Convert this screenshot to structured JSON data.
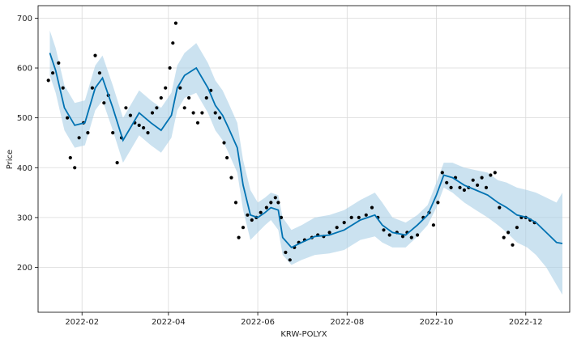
{
  "chart_data": {
    "type": "line",
    "xlabel": "KRW-POLYX",
    "ylabel": "Price",
    "x_tick_labels": [
      "2022-02",
      "2022-04",
      "2022-06",
      "2022-08",
      "2022-10",
      "2022-12"
    ],
    "x_tick_values": [
      "2022-02-01",
      "2022-04-01",
      "2022-06-01",
      "2022-08-01",
      "2022-10-01",
      "2022-12-01"
    ],
    "y_tick_values": [
      200,
      300,
      400,
      500,
      600,
      700
    ],
    "xlim": [
      "2022-01-02",
      "2022-12-31"
    ],
    "ylim": [
      110,
      725
    ],
    "grid": true,
    "colors": {
      "forecast": "#0072B2",
      "band": "#a8cfe6",
      "observed": "#000000"
    },
    "series": [
      {
        "role": "forecast",
        "x": [
          "2022-01-10",
          "2022-01-14",
          "2022-01-20",
          "2022-01-27",
          "2022-02-03",
          "2022-02-10",
          "2022-02-15",
          "2022-02-22",
          "2022-03-01",
          "2022-03-06",
          "2022-03-12",
          "2022-03-20",
          "2022-03-27",
          "2022-04-03",
          "2022-04-07",
          "2022-04-12",
          "2022-04-20",
          "2022-04-28",
          "2022-05-03",
          "2022-05-08",
          "2022-05-12",
          "2022-05-18",
          "2022-05-22",
          "2022-05-27",
          "2022-06-01",
          "2022-06-06",
          "2022-06-10",
          "2022-06-15",
          "2022-06-18",
          "2022-06-24",
          "2022-07-01",
          "2022-07-10",
          "2022-07-20",
          "2022-07-30",
          "2022-08-10",
          "2022-08-20",
          "2022-08-25",
          "2022-09-01",
          "2022-09-10",
          "2022-09-18",
          "2022-09-25",
          "2022-10-01",
          "2022-10-06",
          "2022-10-12",
          "2022-10-20",
          "2022-10-28",
          "2022-11-05",
          "2022-11-12",
          "2022-11-18",
          "2022-11-25",
          "2022-12-02",
          "2022-12-08",
          "2022-12-15",
          "2022-12-22",
          "2022-12-26"
        ],
        "values": [
          630,
          595,
          520,
          485,
          490,
          560,
          580,
          520,
          455,
          480,
          510,
          490,
          475,
          505,
          560,
          585,
          600,
          560,
          525,
          505,
          480,
          440,
          365,
          305,
          300,
          310,
          320,
          315,
          260,
          240,
          250,
          262,
          265,
          275,
          295,
          305,
          285,
          270,
          265,
          285,
          305,
          345,
          385,
          380,
          365,
          355,
          345,
          330,
          320,
          305,
          300,
          290,
          270,
          250,
          248
        ],
        "lower": [
          585,
          550,
          475,
          440,
          445,
          515,
          535,
          475,
          410,
          435,
          465,
          445,
          430,
          460,
          515,
          540,
          550,
          510,
          475,
          455,
          430,
          390,
          315,
          255,
          270,
          285,
          295,
          275,
          225,
          205,
          215,
          225,
          228,
          235,
          255,
          262,
          250,
          240,
          240,
          262,
          285,
          320,
          360,
          350,
          330,
          315,
          300,
          285,
          270,
          250,
          240,
          225,
          200,
          165,
          145
        ],
        "upper": [
          675,
          640,
          565,
          530,
          535,
          605,
          625,
          565,
          500,
          525,
          555,
          535,
          520,
          550,
          605,
          630,
          650,
          610,
          575,
          555,
          530,
          490,
          415,
          355,
          330,
          340,
          350,
          345,
          300,
          275,
          285,
          300,
          305,
          315,
          335,
          350,
          330,
          300,
          290,
          305,
          325,
          370,
          410,
          410,
          400,
          395,
          390,
          375,
          370,
          360,
          355,
          350,
          340,
          330,
          350
        ]
      },
      {
        "role": "observed",
        "x": [
          "2022-01-09",
          "2022-01-12",
          "2022-01-16",
          "2022-01-19",
          "2022-01-22",
          "2022-01-24",
          "2022-01-27",
          "2022-01-30",
          "2022-02-02",
          "2022-02-05",
          "2022-02-08",
          "2022-02-10",
          "2022-02-13",
          "2022-02-16",
          "2022-02-19",
          "2022-02-22",
          "2022-02-25",
          "2022-02-28",
          "2022-03-03",
          "2022-03-06",
          "2022-03-09",
          "2022-03-12",
          "2022-03-15",
          "2022-03-18",
          "2022-03-21",
          "2022-03-24",
          "2022-03-27",
          "2022-03-30",
          "2022-04-02",
          "2022-04-04",
          "2022-04-06",
          "2022-04-09",
          "2022-04-12",
          "2022-04-15",
          "2022-04-18",
          "2022-04-21",
          "2022-04-24",
          "2022-04-27",
          "2022-04-30",
          "2022-05-03",
          "2022-05-06",
          "2022-05-09",
          "2022-05-11",
          "2022-05-14",
          "2022-05-17",
          "2022-05-19",
          "2022-05-22",
          "2022-05-25",
          "2022-05-28",
          "2022-05-31",
          "2022-06-03",
          "2022-06-07",
          "2022-06-10",
          "2022-06-13",
          "2022-06-15",
          "2022-06-17",
          "2022-06-20",
          "2022-06-23",
          "2022-06-26",
          "2022-06-29",
          "2022-07-03",
          "2022-07-08",
          "2022-07-12",
          "2022-07-16",
          "2022-07-20",
          "2022-07-25",
          "2022-07-30",
          "2022-08-04",
          "2022-08-09",
          "2022-08-14",
          "2022-08-18",
          "2022-08-22",
          "2022-08-26",
          "2022-08-30",
          "2022-09-04",
          "2022-09-08",
          "2022-09-11",
          "2022-09-14",
          "2022-09-18",
          "2022-09-22",
          "2022-09-26",
          "2022-09-29",
          "2022-10-02",
          "2022-10-05",
          "2022-10-08",
          "2022-10-11",
          "2022-10-14",
          "2022-10-17",
          "2022-10-20",
          "2022-10-23",
          "2022-10-26",
          "2022-10-29",
          "2022-11-01",
          "2022-11-04",
          "2022-11-07",
          "2022-11-10",
          "2022-11-13",
          "2022-11-16",
          "2022-11-19",
          "2022-11-22",
          "2022-11-25",
          "2022-11-28",
          "2022-12-01",
          "2022-12-04",
          "2022-12-07"
        ],
        "values": [
          575,
          590,
          610,
          560,
          500,
          420,
          400,
          460,
          490,
          470,
          560,
          625,
          590,
          530,
          545,
          470,
          410,
          460,
          520,
          505,
          490,
          485,
          480,
          470,
          510,
          520,
          540,
          560,
          600,
          650,
          690,
          560,
          520,
          540,
          510,
          490,
          510,
          540,
          555,
          510,
          500,
          450,
          420,
          380,
          330,
          260,
          280,
          305,
          295,
          300,
          310,
          320,
          330,
          340,
          330,
          300,
          230,
          215,
          240,
          250,
          255,
          260,
          265,
          262,
          270,
          280,
          290,
          300,
          300,
          305,
          320,
          300,
          275,
          265,
          270,
          262,
          270,
          260,
          265,
          300,
          310,
          285,
          330,
          390,
          370,
          360,
          380,
          360,
          355,
          360,
          375,
          365,
          380,
          360,
          385,
          390,
          320,
          260,
          270,
          245,
          280,
          300,
          300,
          295,
          290
        ]
      }
    ]
  }
}
